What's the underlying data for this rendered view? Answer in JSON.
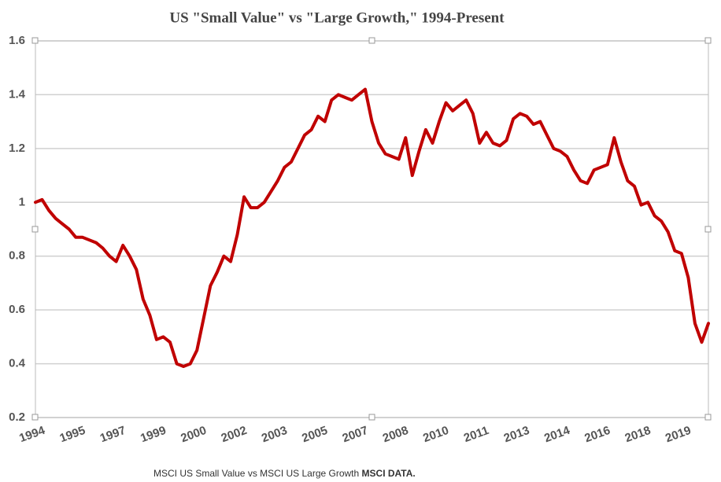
{
  "chart_data": {
    "type": "line",
    "title": "US \"Small Value\" vs \"Large Growth,\" 1994-Present",
    "caption": "MSCI US Small Value vs MSCI US Large Growth",
    "source": "MSCI DATA.",
    "categories": [
      "1994",
      null,
      null,
      null,
      null,
      null,
      "1995",
      null,
      null,
      null,
      null,
      null,
      "1997",
      null,
      null,
      null,
      null,
      null,
      "1999",
      null,
      null,
      null,
      null,
      null,
      "2000",
      null,
      null,
      null,
      null,
      null,
      "2002",
      null,
      null,
      null,
      null,
      null,
      "2003",
      null,
      null,
      null,
      null,
      null,
      "2005",
      null,
      null,
      null,
      null,
      null,
      "2007",
      null,
      null,
      null,
      null,
      null,
      "2008",
      null,
      null,
      null,
      null,
      null,
      "2010",
      null,
      null,
      null,
      null,
      null,
      "2011",
      null,
      null,
      null,
      null,
      null,
      "2013",
      null,
      null,
      null,
      null,
      null,
      "2014",
      null,
      null,
      null,
      null,
      null,
      "2016",
      null,
      null,
      null,
      null,
      null,
      "2018",
      null,
      null,
      null,
      null,
      null,
      "2019",
      null,
      null,
      null,
      null
    ],
    "series": [
      {
        "name": "Small Value / Large Growth",
        "color": "#c00000",
        "values": [
          1.0,
          1.01,
          0.97,
          0.94,
          0.92,
          0.9,
          0.87,
          0.87,
          0.86,
          0.85,
          0.83,
          0.8,
          0.78,
          0.84,
          0.8,
          0.75,
          0.64,
          0.58,
          0.49,
          0.5,
          0.48,
          0.4,
          0.39,
          0.4,
          0.45,
          0.57,
          0.69,
          0.74,
          0.8,
          0.78,
          0.88,
          1.02,
          0.98,
          0.98,
          1.0,
          1.04,
          1.08,
          1.13,
          1.15,
          1.2,
          1.25,
          1.27,
          1.32,
          1.3,
          1.38,
          1.4,
          1.39,
          1.38,
          1.4,
          1.42,
          1.3,
          1.22,
          1.18,
          1.17,
          1.16,
          1.24,
          1.1,
          1.19,
          1.27,
          1.22,
          1.3,
          1.37,
          1.34,
          1.36,
          1.38,
          1.33,
          1.22,
          1.26,
          1.22,
          1.21,
          1.23,
          1.31,
          1.33,
          1.32,
          1.29,
          1.3,
          1.25,
          1.2,
          1.19,
          1.17,
          1.12,
          1.08,
          1.07,
          1.12,
          1.13,
          1.14,
          1.24,
          1.15,
          1.08,
          1.06,
          0.99,
          1.0,
          0.95,
          0.93,
          0.89,
          0.82,
          0.81,
          0.72,
          0.55,
          0.48,
          0.55
        ]
      }
    ],
    "ylim": [
      0.2,
      1.6
    ],
    "yticks": [
      0.2,
      0.4,
      0.6,
      0.8,
      1,
      1.2,
      1.4,
      1.6
    ],
    "grid": true
  }
}
